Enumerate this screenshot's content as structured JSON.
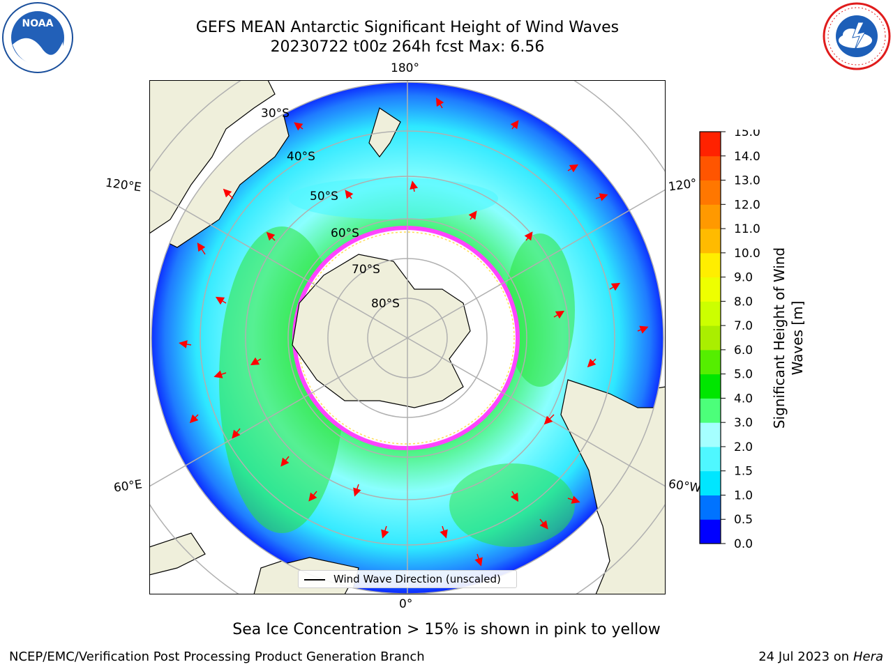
{
  "header": {
    "title_line1": "GEFS MEAN Antarctic Significant Height of Wind Waves",
    "title_line2": "20230722 t00z 264h fcst   Max: 6.56"
  },
  "logos": {
    "left": "noara-logo",
    "right": "nws-logo",
    "noaa_text": "NOAA",
    "nws_ring_text": "NATIONAL WEATHER SERVICE"
  },
  "map": {
    "lon_labels": {
      "top": "180°",
      "bottom": "0°",
      "left_upper": "120°E",
      "left_lower": "60°E",
      "right_upper": "120°",
      "right_lower": "60°W"
    },
    "lat_labels": [
      "30°S",
      "40°S",
      "50°S",
      "60°S",
      "70°S",
      "80°S"
    ],
    "legend": "Wind Wave Direction (unscaled)",
    "colors": {
      "land": "#efefdb",
      "ice": "#ffffff",
      "ice_edge": "#ff44ff",
      "arrow": "#ff0000",
      "grid": "#b0b0b0"
    }
  },
  "colorbar": {
    "label_line1": "Significant Height of Wind",
    "label_line2": "Waves [m]",
    "ticks": [
      "0.0",
      "0.5",
      "1.0",
      "1.5",
      "2.0",
      "3.0",
      "4.0",
      "5.0",
      "6.0",
      "7.0",
      "8.0",
      "9.0",
      "10.0",
      "11.0",
      "12.0",
      "13.0",
      "14.0",
      "15.0"
    ],
    "colors": [
      "#0000ff",
      "#0073ff",
      "#00e6ff",
      "#4ff7ff",
      "#a5ffff",
      "#4cff7a",
      "#00e600",
      "#55ee00",
      "#aaee00",
      "#ccff00",
      "#eeff00",
      "#ffee00",
      "#ffbb00",
      "#ff9900",
      "#ff7700",
      "#ff5500",
      "#ff2200"
    ]
  },
  "caption": "Sea Ice Concentration > 15% is shown in pink to yellow",
  "footer": {
    "left": "NCEP/EMC/Verification Post Processing Product Generation Branch",
    "right_date": "24 Jul 2023 on ",
    "right_machine": "Hera"
  }
}
